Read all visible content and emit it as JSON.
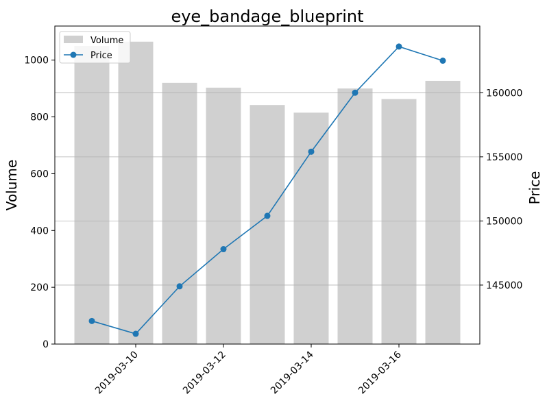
{
  "chart_data": {
    "type": "bar+line",
    "title": "eye_bandage_blueprint",
    "dates": [
      "2019-03-09",
      "2019-03-10",
      "2019-03-11",
      "2019-03-12",
      "2019-03-13",
      "2019-03-14",
      "2019-03-15",
      "2019-03-16",
      "2019-03-17"
    ],
    "x_tick_labels": [
      "2019-03-10",
      "2019-03-12",
      "2019-03-14",
      "2019-03-16"
    ],
    "volume": {
      "name": "Volume",
      "axis_label": "Volume",
      "color": "#d0d0d0",
      "values": [
        1050,
        1065,
        920,
        903,
        842,
        815,
        900,
        863,
        927
      ],
      "ylim": [
        0,
        1120
      ],
      "ticks": [
        0,
        200,
        400,
        600,
        800,
        1000
      ]
    },
    "price": {
      "name": "Price",
      "axis_label": "Price",
      "color": "#1f77b4",
      "values": [
        142200,
        141200,
        144900,
        147800,
        150400,
        155400,
        160000,
        163600,
        162500
      ],
      "ylim": [
        140400,
        165200
      ],
      "ticks": [
        145000,
        150000,
        155000,
        160000
      ]
    },
    "grid": "horizontal lines at right-axis ticks",
    "legend_placement": "top-left"
  }
}
